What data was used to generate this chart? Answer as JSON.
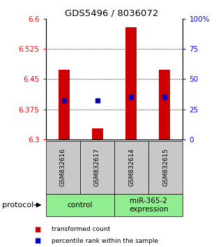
{
  "title": "GDS5496 / 8036072",
  "samples": [
    "GSM832616",
    "GSM832617",
    "GSM832614",
    "GSM832615"
  ],
  "bar_bottom": 6.3,
  "bar_tops": [
    6.473,
    6.328,
    6.578,
    6.473
  ],
  "percentile_values": [
    6.397,
    6.397,
    6.405,
    6.405
  ],
  "ylim_left": [
    6.3,
    6.6
  ],
  "ylim_right": [
    0,
    100
  ],
  "yticks_left": [
    6.3,
    6.375,
    6.45,
    6.525,
    6.6
  ],
  "yticks_right": [
    0,
    25,
    50,
    75,
    100
  ],
  "ytick_labels_left": [
    "6.3",
    "6.375",
    "6.45",
    "6.525",
    "6.6"
  ],
  "ytick_labels_right": [
    "0",
    "25",
    "50",
    "75",
    "100%"
  ],
  "bar_color": "#cc0000",
  "percentile_color": "#0000cc",
  "sample_box_color": "#c8c8c8",
  "group_box_color": "#90ee90",
  "control_label": "control",
  "treatment_label": "miR-365-2\nexpression",
  "protocol_label": "protocol",
  "legend_bar_label": "transformed count",
  "legend_dot_label": "percentile rank within the sample",
  "background_color": "#ffffff",
  "bar_width": 0.35
}
